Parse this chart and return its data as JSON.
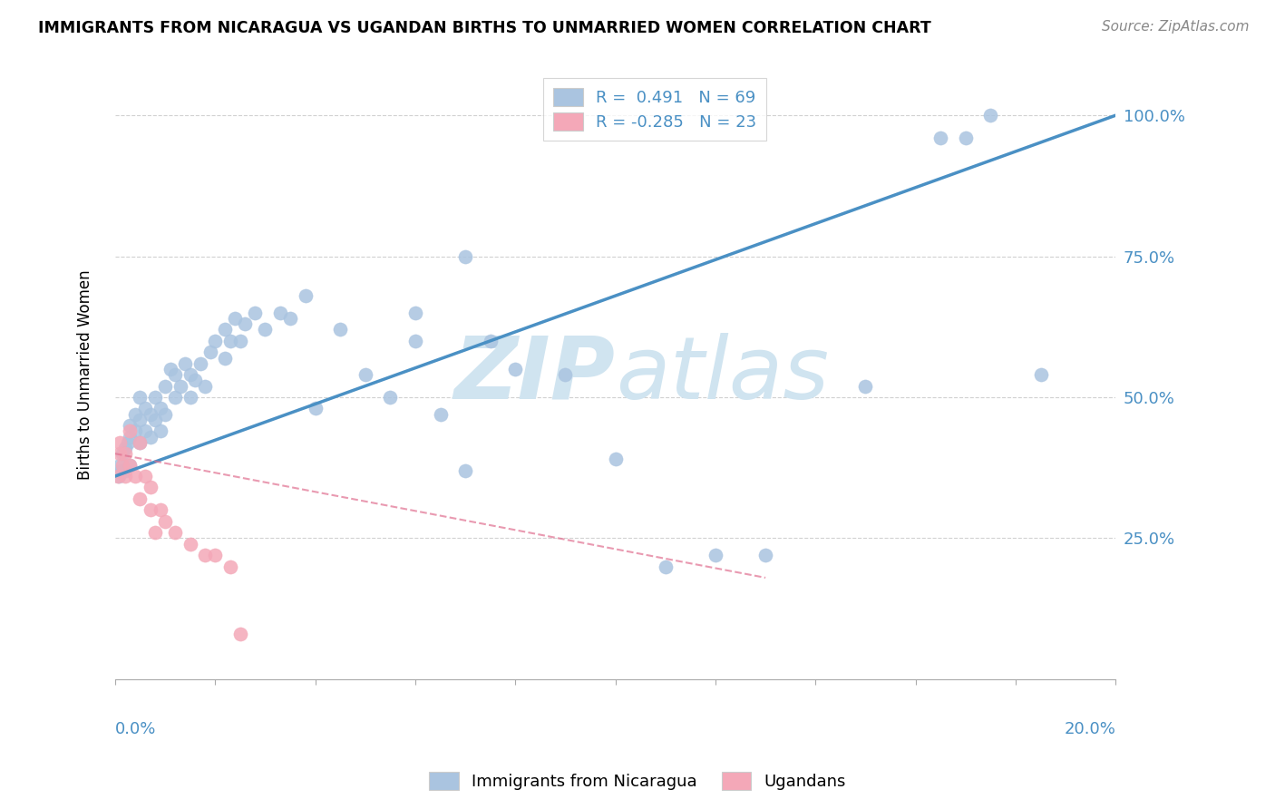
{
  "title": "IMMIGRANTS FROM NICARAGUA VS UGANDAN BIRTHS TO UNMARRIED WOMEN CORRELATION CHART",
  "source": "Source: ZipAtlas.com",
  "ylabel": "Births to Unmarried Women",
  "xlim": [
    0.0,
    0.2
  ],
  "ylim": [
    0.0,
    1.08
  ],
  "ytick_vals": [
    0.0,
    0.25,
    0.5,
    0.75,
    1.0
  ],
  "ytick_labels": [
    "",
    "25.0%",
    "50.0%",
    "75.0%",
    "100.0%"
  ],
  "blue_color": "#aac4e0",
  "pink_color": "#f4a8b8",
  "blue_line_color": "#4a90c4",
  "pink_line_color": "#e07090",
  "grid_color": "#cccccc",
  "watermark_color": "#d0e4f0",
  "blue_x": [
    0.0008,
    0.001,
    0.0012,
    0.0015,
    0.002,
    0.002,
    0.0025,
    0.003,
    0.003,
    0.003,
    0.004,
    0.004,
    0.005,
    0.005,
    0.005,
    0.006,
    0.006,
    0.007,
    0.007,
    0.008,
    0.008,
    0.009,
    0.009,
    0.01,
    0.01,
    0.011,
    0.012,
    0.012,
    0.013,
    0.014,
    0.015,
    0.015,
    0.016,
    0.017,
    0.018,
    0.019,
    0.02,
    0.022,
    0.022,
    0.023,
    0.024,
    0.025,
    0.026,
    0.028,
    0.03,
    0.033,
    0.035,
    0.038,
    0.04,
    0.045,
    0.05,
    0.055,
    0.06,
    0.065,
    0.07,
    0.075,
    0.08,
    0.09,
    0.1,
    0.11,
    0.12,
    0.13,
    0.06,
    0.07,
    0.15,
    0.165,
    0.17,
    0.175,
    0.185
  ],
  "blue_y": [
    0.36,
    0.38,
    0.37,
    0.4,
    0.37,
    0.41,
    0.42,
    0.38,
    0.43,
    0.45,
    0.44,
    0.47,
    0.42,
    0.46,
    0.5,
    0.44,
    0.48,
    0.43,
    0.47,
    0.46,
    0.5,
    0.44,
    0.48,
    0.47,
    0.52,
    0.55,
    0.5,
    0.54,
    0.52,
    0.56,
    0.5,
    0.54,
    0.53,
    0.56,
    0.52,
    0.58,
    0.6,
    0.57,
    0.62,
    0.6,
    0.64,
    0.6,
    0.63,
    0.65,
    0.62,
    0.65,
    0.64,
    0.68,
    0.48,
    0.62,
    0.54,
    0.5,
    0.65,
    0.47,
    0.75,
    0.6,
    0.55,
    0.54,
    0.39,
    0.2,
    0.22,
    0.22,
    0.6,
    0.37,
    0.52,
    0.96,
    0.96,
    1.0,
    0.54
  ],
  "pink_x": [
    0.0005,
    0.001,
    0.001,
    0.0015,
    0.002,
    0.002,
    0.003,
    0.003,
    0.004,
    0.005,
    0.005,
    0.006,
    0.007,
    0.007,
    0.008,
    0.009,
    0.01,
    0.012,
    0.015,
    0.018,
    0.02,
    0.023,
    0.025
  ],
  "pink_y": [
    0.36,
    0.4,
    0.42,
    0.38,
    0.36,
    0.4,
    0.38,
    0.44,
    0.36,
    0.42,
    0.32,
    0.36,
    0.3,
    0.34,
    0.26,
    0.3,
    0.28,
    0.26,
    0.24,
    0.22,
    0.22,
    0.2,
    0.08
  ],
  "blue_line_x": [
    0.0,
    0.2
  ],
  "blue_line_y": [
    0.36,
    1.0
  ],
  "pink_line_x": [
    0.0,
    0.13
  ],
  "pink_line_y": [
    0.4,
    0.18
  ]
}
